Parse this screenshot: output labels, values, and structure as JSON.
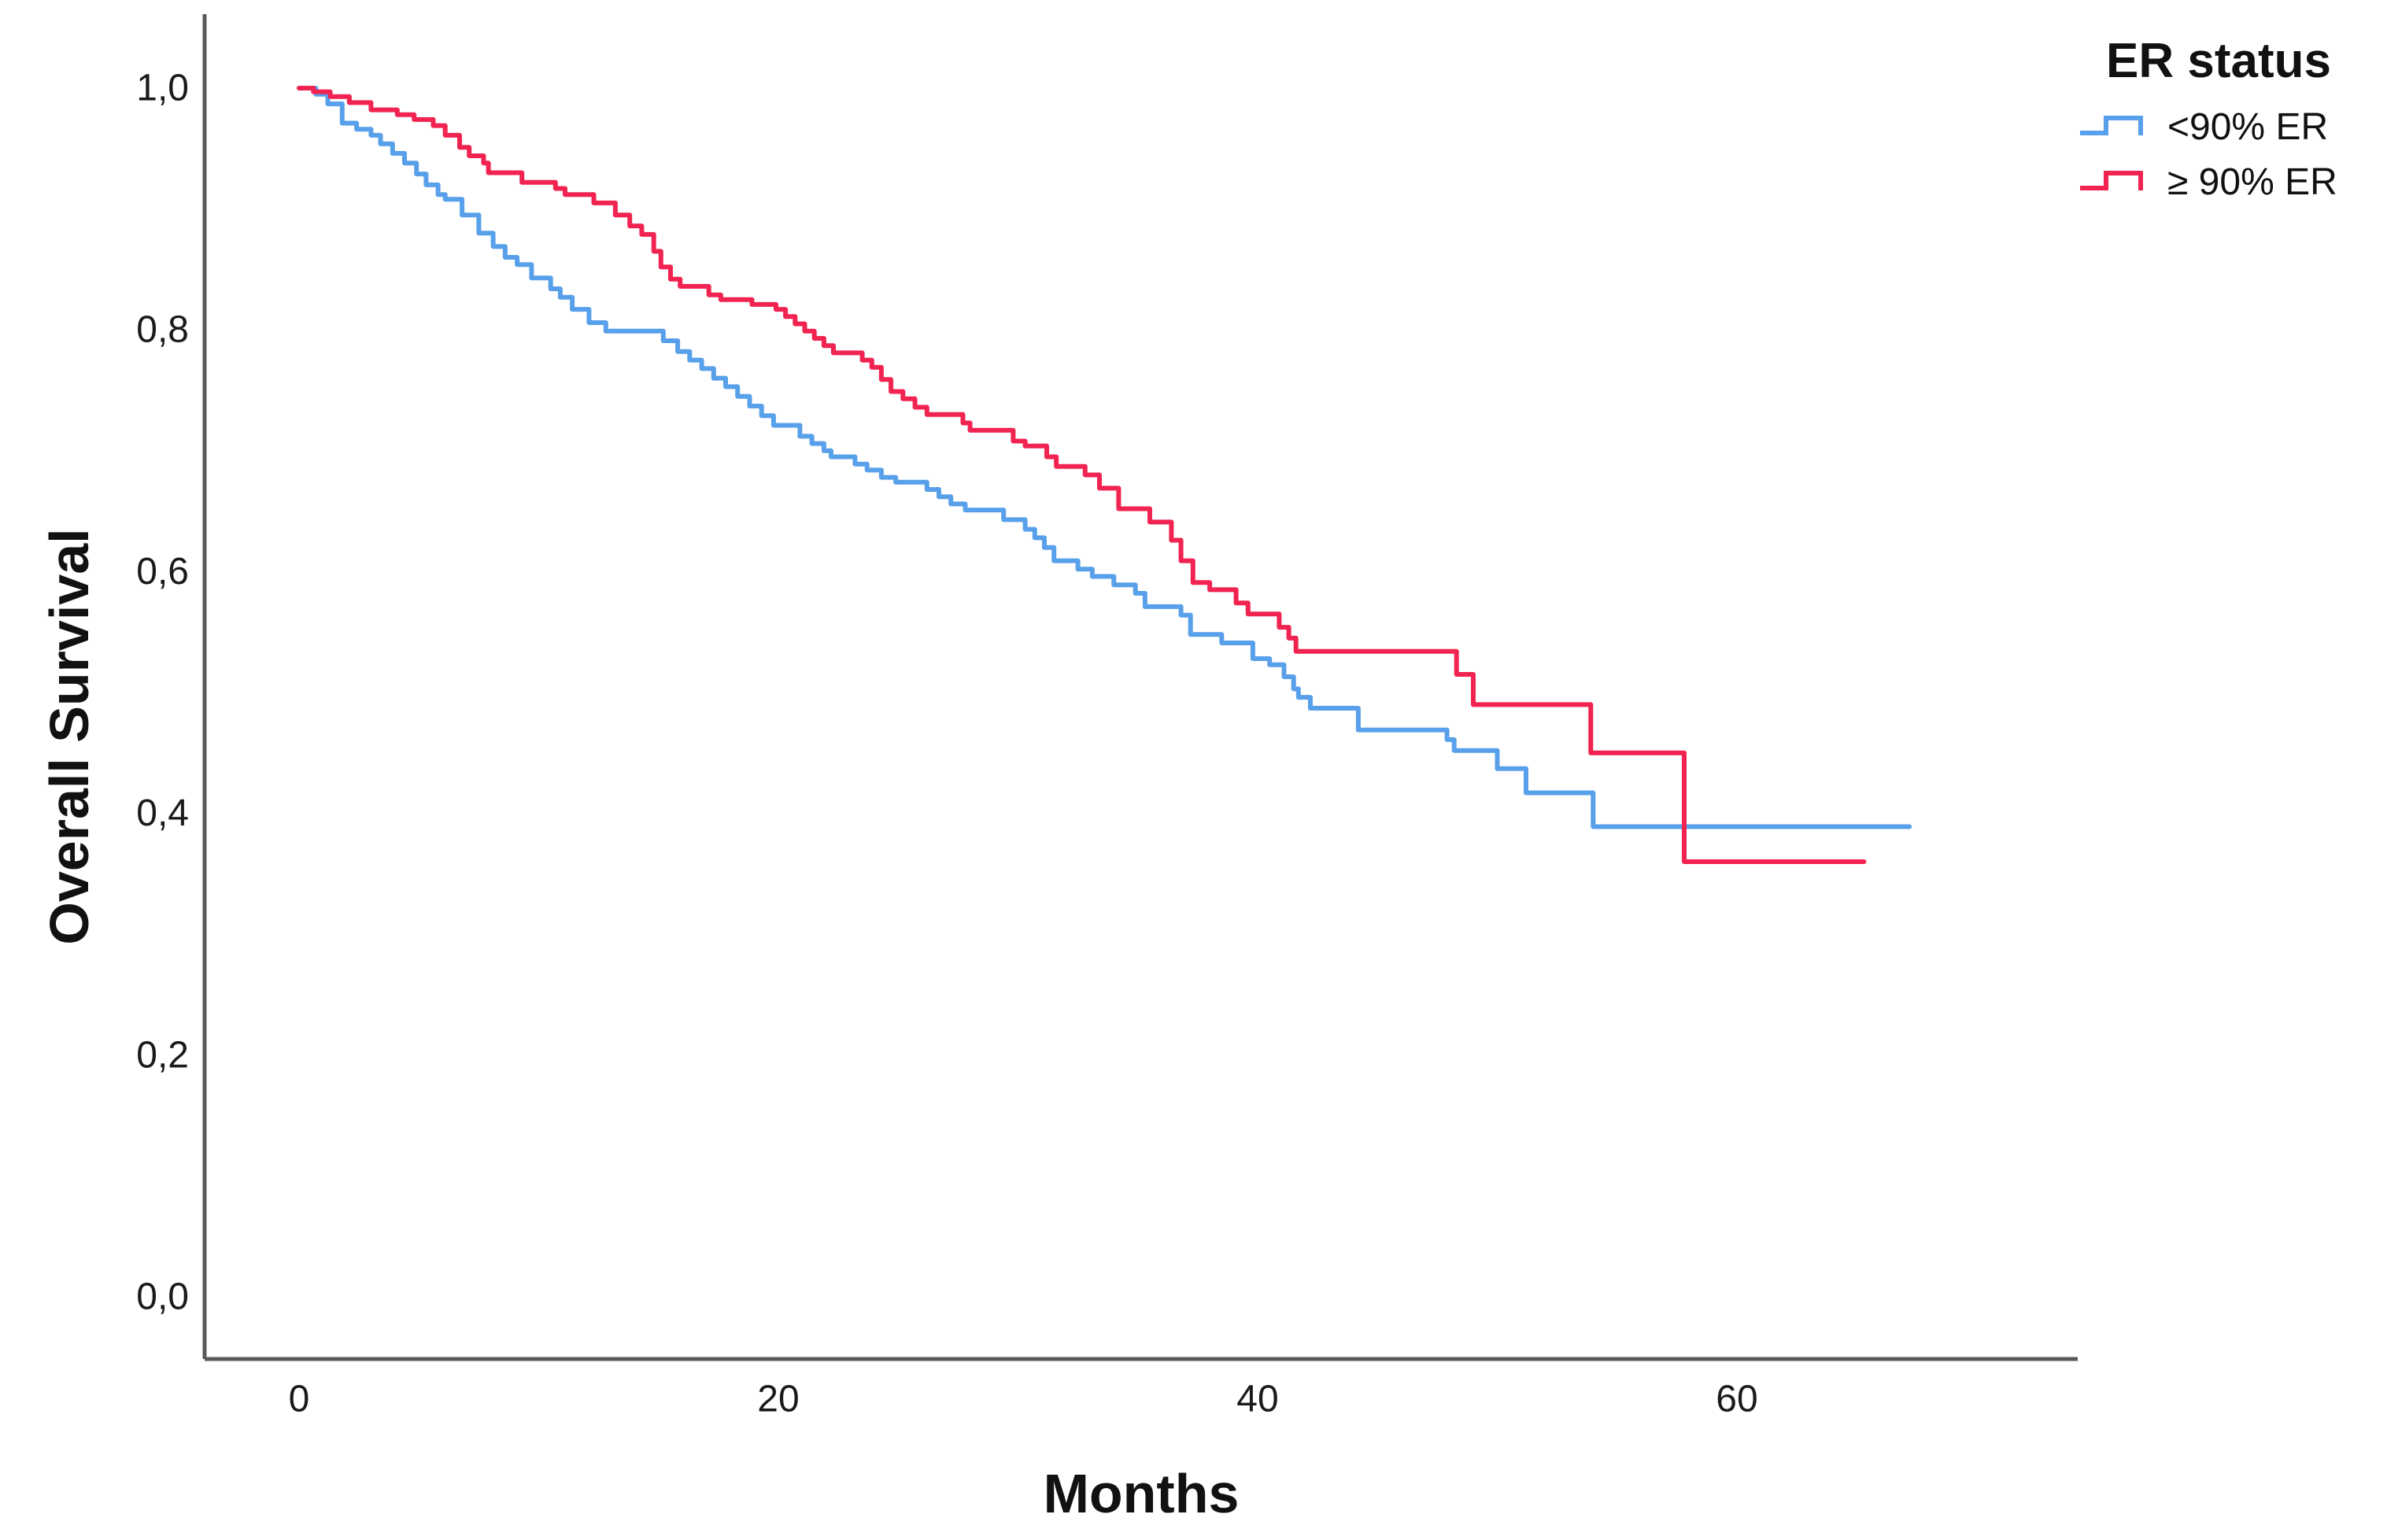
{
  "figure": {
    "y_axis_title": "Overall Survival",
    "x_axis_title": "Months",
    "legend": {
      "title": "ER status",
      "items": [
        {
          "label": "<90% ER",
          "color_key": "blue"
        },
        {
          "label": "≥ 90% ER",
          "color_key": "red"
        }
      ]
    }
  },
  "colors": {
    "blue": "#58A0EA",
    "red": "#F12350",
    "axis": "#595959",
    "text": "#1a1a1a",
    "background": "#ffffff"
  },
  "chart_data": {
    "type": "line",
    "subtype": "kaplan-meier-step",
    "title": "",
    "xlabel": "Months",
    "ylabel": "Overall Survival",
    "xlim": [
      0,
      74
    ],
    "ylim": [
      0,
      1.05
    ],
    "grid": false,
    "legend_position": "top-right",
    "legend_title": "ER status",
    "x_ticks": [
      {
        "value": 0,
        "label": "0"
      },
      {
        "value": 20,
        "label": "20"
      },
      {
        "value": 40,
        "label": "40"
      },
      {
        "value": 60,
        "label": "60"
      }
    ],
    "y_ticks": [
      {
        "value": 1.0,
        "label": "1,0"
      },
      {
        "value": 0.8,
        "label": "0,8"
      },
      {
        "value": 0.6,
        "label": "0,6"
      },
      {
        "value": 0.4,
        "label": "0,4"
      },
      {
        "value": 0.2,
        "label": "0,2"
      },
      {
        "value": 0.0,
        "label": "0,0"
      }
    ],
    "series": [
      {
        "name": "<90% ER",
        "color_key": "blue",
        "points": [
          [
            0,
            1.0
          ],
          [
            0.7,
            0.995
          ],
          [
            1.2,
            0.987
          ],
          [
            1.8,
            0.971
          ],
          [
            2.4,
            0.966
          ],
          [
            3.0,
            0.961
          ],
          [
            3.4,
            0.954
          ],
          [
            3.9,
            0.946
          ],
          [
            4.4,
            0.938
          ],
          [
            4.9,
            0.929
          ],
          [
            5.3,
            0.92
          ],
          [
            5.8,
            0.912
          ],
          [
            6.1,
            0.908
          ],
          [
            6.8,
            0.895
          ],
          [
            7.5,
            0.88
          ],
          [
            8.1,
            0.869
          ],
          [
            8.6,
            0.86
          ],
          [
            9.1,
            0.854
          ],
          [
            9.7,
            0.843
          ],
          [
            10.5,
            0.834
          ],
          [
            10.9,
            0.827
          ],
          [
            11.4,
            0.817
          ],
          [
            12.1,
            0.806
          ],
          [
            12.8,
            0.799
          ],
          [
            15.2,
            0.791
          ],
          [
            15.8,
            0.782
          ],
          [
            16.3,
            0.775
          ],
          [
            16.8,
            0.768
          ],
          [
            17.3,
            0.76
          ],
          [
            17.8,
            0.753
          ],
          [
            18.3,
            0.745
          ],
          [
            18.8,
            0.737
          ],
          [
            19.3,
            0.729
          ],
          [
            19.8,
            0.721
          ],
          [
            20.9,
            0.712
          ],
          [
            21.4,
            0.706
          ],
          [
            21.9,
            0.7
          ],
          [
            22.2,
            0.695
          ],
          [
            23.2,
            0.689
          ],
          [
            23.7,
            0.684
          ],
          [
            24.3,
            0.678
          ],
          [
            24.9,
            0.674
          ],
          [
            26.2,
            0.668
          ],
          [
            26.7,
            0.662
          ],
          [
            27.2,
            0.656
          ],
          [
            27.8,
            0.651
          ],
          [
            29.4,
            0.643
          ],
          [
            30.3,
            0.635
          ],
          [
            30.7,
            0.628
          ],
          [
            31.1,
            0.62
          ],
          [
            31.5,
            0.609
          ],
          [
            32.5,
            0.602
          ],
          [
            33.1,
            0.596
          ],
          [
            34.0,
            0.589
          ],
          [
            34.9,
            0.582
          ],
          [
            35.3,
            0.571
          ],
          [
            36.8,
            0.564
          ],
          [
            37.2,
            0.548
          ],
          [
            38.5,
            0.541
          ],
          [
            39.8,
            0.528
          ],
          [
            40.5,
            0.523
          ],
          [
            41.1,
            0.513
          ],
          [
            41.5,
            0.503
          ],
          [
            41.7,
            0.496
          ],
          [
            42.2,
            0.487
          ],
          [
            44.2,
            0.469
          ],
          [
            47.9,
            0.461
          ],
          [
            48.2,
            0.452
          ],
          [
            50.0,
            0.437
          ],
          [
            51.2,
            0.417
          ],
          [
            54.0,
            0.389
          ],
          [
            67.2,
            0.389
          ]
        ]
      },
      {
        "name": "≥ 90% ER",
        "color_key": "red",
        "points": [
          [
            0,
            1.0
          ],
          [
            0.6,
            0.997
          ],
          [
            1.3,
            0.993
          ],
          [
            2.1,
            0.988
          ],
          [
            3.0,
            0.982
          ],
          [
            4.1,
            0.978
          ],
          [
            4.8,
            0.974
          ],
          [
            5.6,
            0.969
          ],
          [
            6.1,
            0.961
          ],
          [
            6.7,
            0.951
          ],
          [
            7.1,
            0.944
          ],
          [
            7.7,
            0.938
          ],
          [
            7.9,
            0.93
          ],
          [
            9.3,
            0.922
          ],
          [
            10.7,
            0.917
          ],
          [
            11.1,
            0.912
          ],
          [
            12.3,
            0.905
          ],
          [
            13.2,
            0.895
          ],
          [
            13.8,
            0.886
          ],
          [
            14.3,
            0.879
          ],
          [
            14.8,
            0.865
          ],
          [
            15.1,
            0.852
          ],
          [
            15.5,
            0.842
          ],
          [
            15.9,
            0.836
          ],
          [
            17.1,
            0.829
          ],
          [
            17.6,
            0.825
          ],
          [
            18.9,
            0.821
          ],
          [
            19.9,
            0.817
          ],
          [
            20.3,
            0.811
          ],
          [
            20.7,
            0.805
          ],
          [
            21.1,
            0.799
          ],
          [
            21.5,
            0.793
          ],
          [
            21.9,
            0.787
          ],
          [
            22.3,
            0.781
          ],
          [
            23.5,
            0.775
          ],
          [
            23.9,
            0.769
          ],
          [
            24.3,
            0.759
          ],
          [
            24.7,
            0.749
          ],
          [
            25.2,
            0.743
          ],
          [
            25.7,
            0.736
          ],
          [
            26.2,
            0.73
          ],
          [
            27.7,
            0.723
          ],
          [
            28.0,
            0.717
          ],
          [
            29.8,
            0.708
          ],
          [
            30.3,
            0.704
          ],
          [
            31.2,
            0.695
          ],
          [
            31.6,
            0.687
          ],
          [
            32.8,
            0.68
          ],
          [
            33.4,
            0.669
          ],
          [
            34.2,
            0.652
          ],
          [
            35.5,
            0.641
          ],
          [
            36.4,
            0.626
          ],
          [
            36.8,
            0.609
          ],
          [
            37.3,
            0.591
          ],
          [
            38.0,
            0.585
          ],
          [
            39.1,
            0.574
          ],
          [
            39.6,
            0.565
          ],
          [
            40.9,
            0.554
          ],
          [
            41.3,
            0.545
          ],
          [
            41.6,
            0.534
          ],
          [
            48.3,
            0.515
          ],
          [
            49.0,
            0.49
          ],
          [
            53.9,
            0.45
          ],
          [
            57.8,
            0.36
          ],
          [
            65.3,
            0.36
          ]
        ]
      }
    ]
  }
}
